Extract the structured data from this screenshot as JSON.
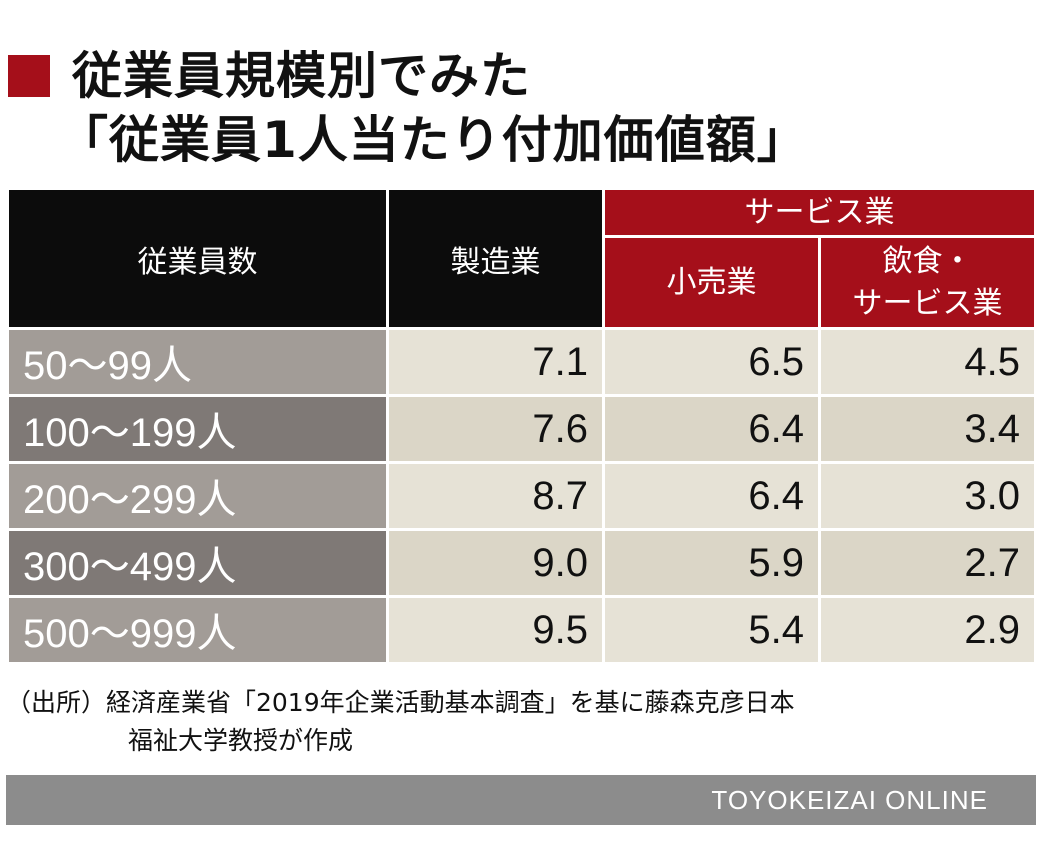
{
  "title": {
    "line1": "従業員規模別でみた",
    "line2": "「従業員1人当たり付加価値額」"
  },
  "chart_data": {
    "type": "table",
    "headers": {
      "employees": "従業員数",
      "manufacturing": "製造業",
      "services_group": "サービス業",
      "retail": "小売業",
      "food_services_line1": "飲食・",
      "food_services_line2": "サービス業"
    },
    "rows": [
      {
        "label": "50〜99人",
        "manufacturing": "7.1",
        "retail": "6.5",
        "food_services": "4.5"
      },
      {
        "label": "100〜199人",
        "manufacturing": "7.6",
        "retail": "6.4",
        "food_services": "3.4"
      },
      {
        "label": "200〜299人",
        "manufacturing": "8.7",
        "retail": "6.4",
        "food_services": "3.0"
      },
      {
        "label": "300〜499人",
        "manufacturing": "9.0",
        "retail": "5.9",
        "food_services": "2.7"
      },
      {
        "label": "500〜999人",
        "manufacturing": "9.5",
        "retail": "5.4",
        "food_services": "2.9"
      }
    ]
  },
  "source": {
    "line1": "（出所）経済産業省「2019年企業活動基本調査」を基に藤森克彦日本",
    "line2": "福祉大学教授が作成"
  },
  "footer": {
    "brand": "TOYOKEIZAI  ONLINE"
  },
  "colors": {
    "accent_red": "#a50f1a",
    "header_black": "#0c0c0c",
    "label_light": "#a29c97",
    "label_dark": "#7f7976",
    "cell_light": "#e6e2d6",
    "cell_dark": "#dbd6c7",
    "footer_gray": "#8c8c8c"
  }
}
